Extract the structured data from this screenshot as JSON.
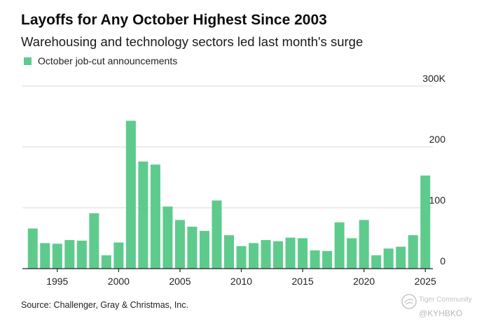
{
  "chart_data": {
    "type": "bar",
    "title": "Layoffs for Any October Highest Since 2003",
    "subtitle": "Warehousing and technology sectors led last month's surge",
    "legend": [
      "October job-cut announcements"
    ],
    "source": "Source: Challenger, Gray & Christmas, Inc.",
    "x": [
      1993,
      1994,
      1995,
      1996,
      1997,
      1998,
      1999,
      2000,
      2001,
      2002,
      2003,
      2004,
      2005,
      2006,
      2007,
      2008,
      2009,
      2010,
      2011,
      2012,
      2013,
      2014,
      2015,
      2016,
      2017,
      2018,
      2019,
      2020,
      2021,
      2022,
      2023,
      2024,
      2025
    ],
    "values": [
      66000,
      42000,
      41000,
      47000,
      46000,
      91000,
      22000,
      43000,
      243000,
      176000,
      171000,
      102000,
      80000,
      69000,
      62000,
      112000,
      55000,
      37000,
      42000,
      47000,
      45000,
      51000,
      50000,
      30000,
      29000,
      76000,
      50000,
      80000,
      22000,
      33000,
      36000,
      55000,
      153000
    ],
    "x_ticks": [
      "1995",
      "2000",
      "2005",
      "2010",
      "2015",
      "2020",
      "2025"
    ],
    "y_ticks": [
      "0",
      "100",
      "200",
      "300K"
    ],
    "ylim": [
      0,
      300000
    ],
    "xlabel": "",
    "ylabel": "",
    "grid": true,
    "legend_position": "top-left",
    "colors": {
      "bar": "#5ecb8d",
      "grid": "#d9d9d9",
      "axis": "#222222"
    }
  },
  "watermark": {
    "name": "Tiger Community",
    "handle": "@KYHBKO"
  }
}
